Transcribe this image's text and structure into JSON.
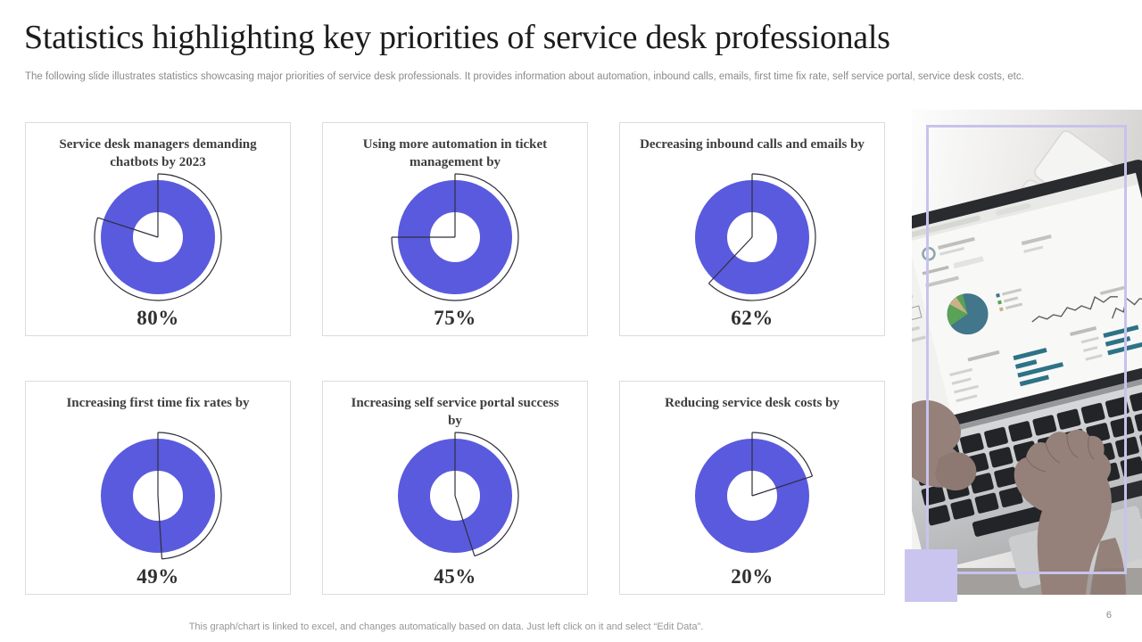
{
  "slide": {
    "title": "Statistics highlighting key priorities of service desk professionals",
    "subtitle": "The following slide illustrates statistics showcasing major priorities of service desk professionals. It provides information about automation, inbound calls, emails, first time fix rate, self service portal, service desk costs, etc.",
    "footer": "This graph/chart is linked to excel,  and changes automatically based on data. Just left click on it and select “Edit Data”.",
    "page_number": "6"
  },
  "chart_data": [
    {
      "type": "pie",
      "title": "Service desk managers demanding chatbots by 2023",
      "values": [
        80,
        20
      ],
      "value_label": "80%"
    },
    {
      "type": "pie",
      "title": "Using more automation in ticket management by",
      "values": [
        75,
        25
      ],
      "value_label": "75%"
    },
    {
      "type": "pie",
      "title": "Decreasing inbound calls and emails by",
      "values": [
        62,
        38
      ],
      "value_label": "62%"
    },
    {
      "type": "pie",
      "title": "Increasing first time fix rates by",
      "values": [
        49,
        51
      ],
      "value_label": "49%"
    },
    {
      "type": "pie",
      "title": "Increasing self service portal success by",
      "values": [
        45,
        55
      ],
      "value_label": "45%"
    },
    {
      "type": "pie",
      "title": "Reducing service desk costs by",
      "values": [
        20,
        80
      ],
      "value_label": "20%"
    }
  ],
  "style": {
    "accent_blue": "#5a5ade",
    "chart_outline": "#2e2e3a",
    "card_border": "#dcdcdc",
    "lavender_accent": "#c7c3ec",
    "lavender_fill": "#c9c5ef",
    "title_color": "#1c1c1c",
    "muted_text": "#8a8a8a"
  }
}
